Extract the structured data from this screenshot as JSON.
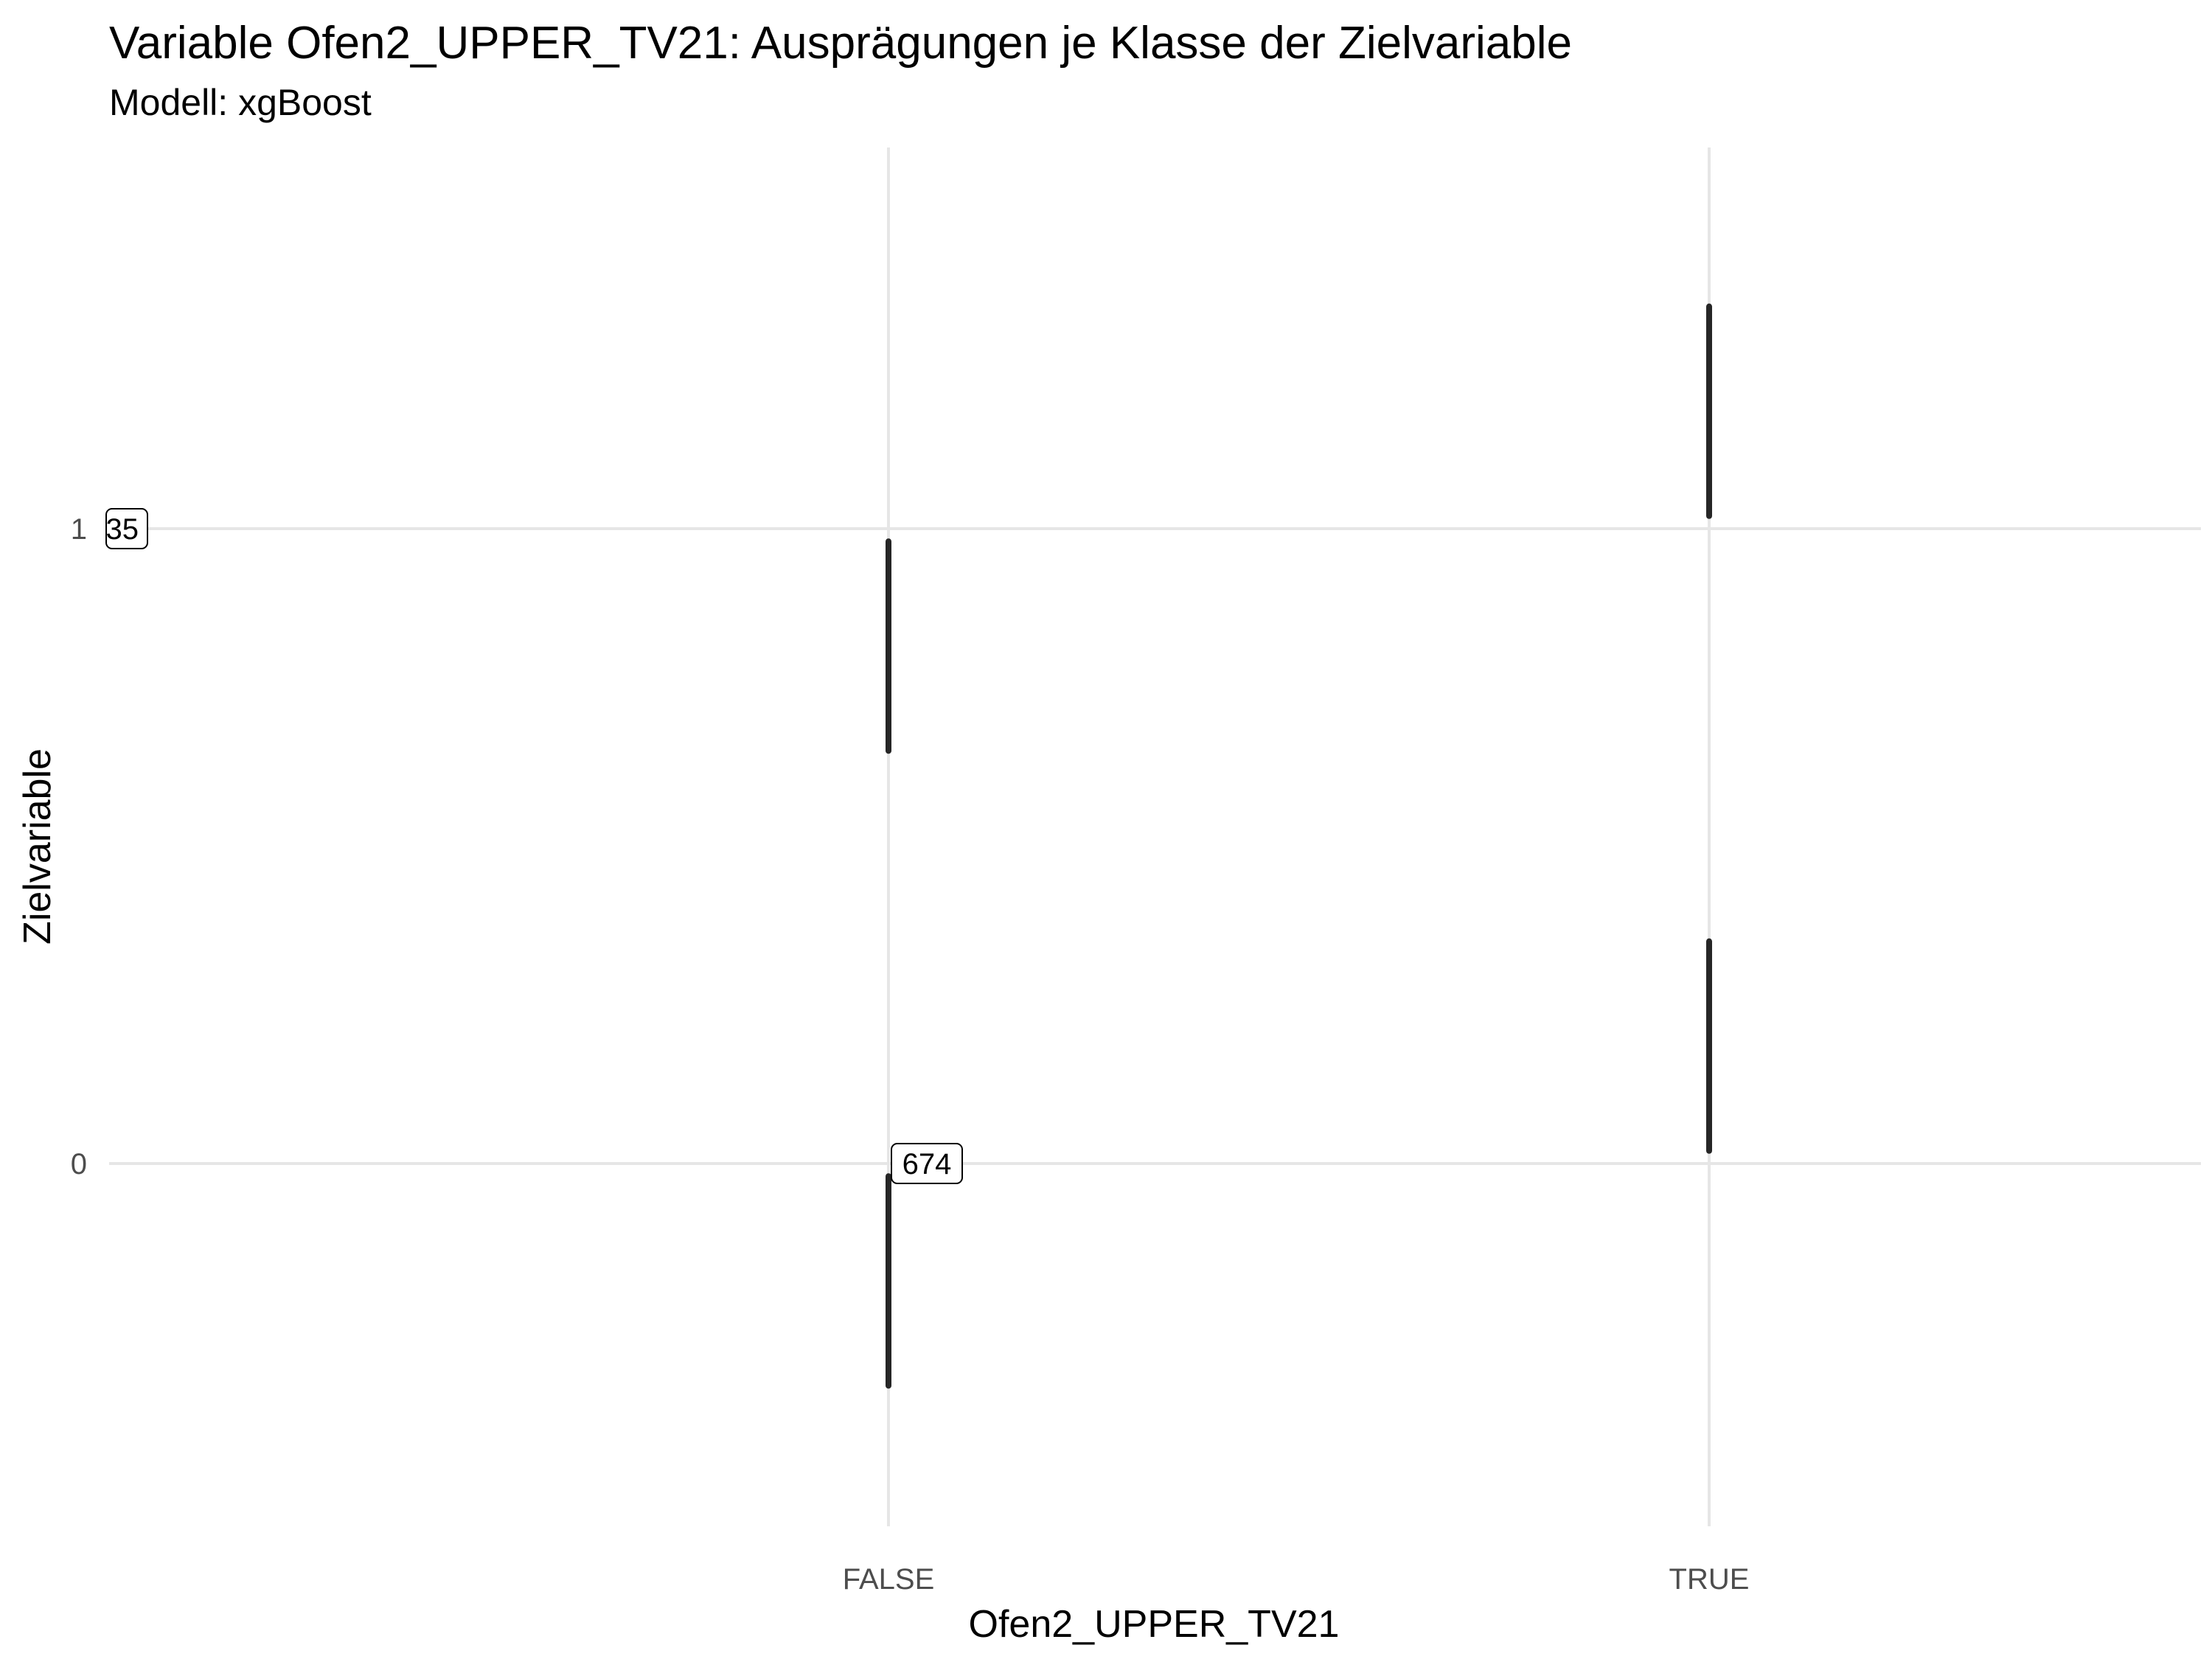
{
  "chart_data": {
    "type": "scatter",
    "title": "Variable Ofen2_UPPER_TV21: Ausprägungen je Klasse der Zielvariable",
    "subtitle": "Modell: xgBoost",
    "xlabel": "Ofen2_UPPER_TV21",
    "ylabel": "Zielvariable",
    "x_categories": [
      "FALSE",
      "TRUE"
    ],
    "y_ticks": [
      {
        "value": 0,
        "label": "0"
      },
      {
        "value": 1,
        "label": "1"
      }
    ],
    "ylim": [
      -0.56,
      1.6
    ],
    "jitter_segments": [
      {
        "x": "FALSE",
        "y_from": 0.65,
        "y_to": 0.98
      },
      {
        "x": "FALSE",
        "y_from": -0.35,
        "y_to": -0.02
      },
      {
        "x": "TRUE",
        "y_from": 1.02,
        "y_to": 1.35
      },
      {
        "x": "TRUE",
        "y_from": 0.02,
        "y_to": 0.35
      }
    ],
    "data_labels": [
      {
        "x": "FALSE",
        "y": 1,
        "text": "35",
        "anchor": "left-edge"
      },
      {
        "x": "FALSE",
        "y": 0,
        "text": "674"
      }
    ],
    "grid": "major-only",
    "colors": {
      "points": "#262626",
      "grid": "#e6e6e6",
      "tick_text": "#4d4d4d"
    }
  }
}
